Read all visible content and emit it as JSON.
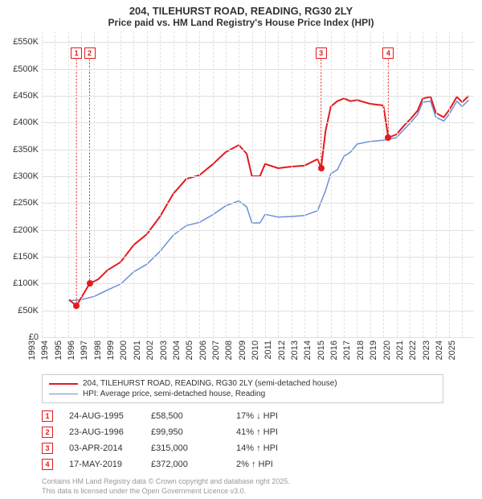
{
  "title": "204, TILEHURST ROAD, READING, RG30 2LY",
  "subtitle": "Price paid vs. HM Land Registry's House Price Index (HPI)",
  "chart": {
    "type": "line",
    "background_color": "#ffffff",
    "grid_color": "#e0e0e0",
    "grid_style": "dashed-vertical solid-horizontal",
    "x_range": [
      1993,
      2025.9
    ],
    "y_range": [
      0,
      570
    ],
    "y_ticks": [
      0,
      50,
      100,
      150,
      200,
      250,
      300,
      350,
      400,
      450,
      500,
      550
    ],
    "y_tick_labels": [
      "£0",
      "£50K",
      "£100K",
      "£150K",
      "£200K",
      "£250K",
      "£300K",
      "£350K",
      "£400K",
      "£450K",
      "£500K",
      "£550K"
    ],
    "x_ticks": [
      1993,
      1994,
      1995,
      1996,
      1997,
      1998,
      1999,
      2000,
      2001,
      2002,
      2003,
      2004,
      2005,
      2006,
      2007,
      2008,
      2009,
      2010,
      2011,
      2012,
      2013,
      2014,
      2015,
      2016,
      2017,
      2018,
      2019,
      2020,
      2021,
      2022,
      2023,
      2024,
      2025
    ],
    "tick_fontsize": 11,
    "series": [
      {
        "name": "204, TILEHURST ROAD, READING, RG30 2LY (semi-detached house)",
        "color": "#e31a1c",
        "line_width": 2,
        "points": [
          [
            1995.08,
            70
          ],
          [
            1995.64,
            58.5
          ],
          [
            1996.64,
            99.95
          ],
          [
            1997.3,
            108
          ],
          [
            1998.0,
            125
          ],
          [
            1999.0,
            140
          ],
          [
            2000.0,
            172
          ],
          [
            2001.0,
            192
          ],
          [
            2002.0,
            225
          ],
          [
            2003.0,
            267
          ],
          [
            2004.0,
            295
          ],
          [
            2005.0,
            302
          ],
          [
            2006.0,
            322
          ],
          [
            2007.0,
            345
          ],
          [
            2008.0,
            358
          ],
          [
            2008.6,
            342
          ],
          [
            2009.0,
            300
          ],
          [
            2009.6,
            300
          ],
          [
            2010.0,
            323
          ],
          [
            2011.0,
            315
          ],
          [
            2012.0,
            318
          ],
          [
            2013.0,
            320
          ],
          [
            2014.0,
            332
          ],
          [
            2014.26,
            315
          ],
          [
            2014.6,
            384
          ],
          [
            2015.0,
            430
          ],
          [
            2015.5,
            440
          ],
          [
            2016.0,
            445
          ],
          [
            2016.5,
            440
          ],
          [
            2017.0,
            442
          ],
          [
            2018.0,
            435
          ],
          [
            2019.0,
            432
          ],
          [
            2019.38,
            372
          ],
          [
            2020.0,
            378
          ],
          [
            2020.6,
            395
          ],
          [
            2021.0,
            405
          ],
          [
            2021.6,
            422
          ],
          [
            2022.0,
            445
          ],
          [
            2022.6,
            448
          ],
          [
            2023.0,
            418
          ],
          [
            2023.6,
            410
          ],
          [
            2024.0,
            423
          ],
          [
            2024.6,
            448
          ],
          [
            2025.0,
            438
          ],
          [
            2025.5,
            450
          ]
        ]
      },
      {
        "name": "HPI: Average price, semi-detached house, Reading",
        "color": "#6a8fd8",
        "line_width": 1.5,
        "points": [
          [
            1995.0,
            68
          ],
          [
            1996.0,
            70
          ],
          [
            1997.0,
            76
          ],
          [
            1998.0,
            88
          ],
          [
            1999.0,
            99
          ],
          [
            2000.0,
            122
          ],
          [
            2001.0,
            136
          ],
          [
            2002.0,
            160
          ],
          [
            2003.0,
            190
          ],
          [
            2004.0,
            208
          ],
          [
            2005.0,
            214
          ],
          [
            2006.0,
            228
          ],
          [
            2007.0,
            245
          ],
          [
            2008.0,
            254
          ],
          [
            2008.6,
            243
          ],
          [
            2009.0,
            213
          ],
          [
            2009.6,
            213
          ],
          [
            2010.0,
            229
          ],
          [
            2011.0,
            224
          ],
          [
            2012.0,
            225
          ],
          [
            2013.0,
            227
          ],
          [
            2014.0,
            236
          ],
          [
            2014.6,
            273
          ],
          [
            2015.0,
            305
          ],
          [
            2015.5,
            312
          ],
          [
            2016.0,
            337
          ],
          [
            2016.5,
            345
          ],
          [
            2017.0,
            360
          ],
          [
            2018.0,
            365
          ],
          [
            2019.0,
            367
          ],
          [
            2019.6,
            370
          ],
          [
            2020.0,
            372
          ],
          [
            2020.6,
            388
          ],
          [
            2021.0,
            398
          ],
          [
            2021.6,
            415
          ],
          [
            2022.0,
            438
          ],
          [
            2022.6,
            440
          ],
          [
            2023.0,
            410
          ],
          [
            2023.6,
            403
          ],
          [
            2024.0,
            415
          ],
          [
            2024.6,
            440
          ],
          [
            2025.0,
            430
          ],
          [
            2025.5,
            442
          ]
        ]
      }
    ],
    "sale_markers": [
      {
        "id": 1,
        "x": 1995.64,
        "y": 58.5,
        "dot_color": "#e31a1c",
        "box_y": 530
      },
      {
        "id": 2,
        "x": 1996.64,
        "y": 99.95,
        "dot_color": "#e31a1c",
        "box_y": 530
      },
      {
        "id": 3,
        "x": 2014.26,
        "y": 315,
        "dot_color": "#e31a1c",
        "box_y": 530
      },
      {
        "id": 4,
        "x": 2019.38,
        "y": 372,
        "dot_color": "#e31a1c",
        "box_y": 530
      }
    ]
  },
  "legend": {
    "border_color": "#cccccc",
    "fontsize": 10,
    "items": [
      {
        "color": "#e31a1c",
        "label": "204, TILEHURST ROAD, READING, RG30 2LY (semi-detached house)",
        "width": 2
      },
      {
        "color": "#6a8fd8",
        "label": "HPI: Average price, semi-detached house, Reading",
        "width": 1.5
      }
    ]
  },
  "sales": [
    {
      "id": 1,
      "date": "24-AUG-1995",
      "price": "£58,500",
      "pct": "17%",
      "dir": "down",
      "suffix": "HPI"
    },
    {
      "id": 2,
      "date": "23-AUG-1996",
      "price": "£99,950",
      "pct": "41%",
      "dir": "up",
      "suffix": "HPI"
    },
    {
      "id": 3,
      "date": "03-APR-2014",
      "price": "£315,000",
      "pct": "14%",
      "dir": "up",
      "suffix": "HPI"
    },
    {
      "id": 4,
      "date": "17-MAY-2019",
      "price": "£372,000",
      "pct": "2%",
      "dir": "up",
      "suffix": "HPI"
    }
  ],
  "footer_line1": "Contains HM Land Registry data © Crown copyright and database right 2025.",
  "footer_line2": "This data is licensed under the Open Government Licence v3.0.",
  "arrows": {
    "up": "↑",
    "down": "↓"
  },
  "colors": {
    "marker_border": "#e31a1c",
    "footer_text": "#999999"
  }
}
